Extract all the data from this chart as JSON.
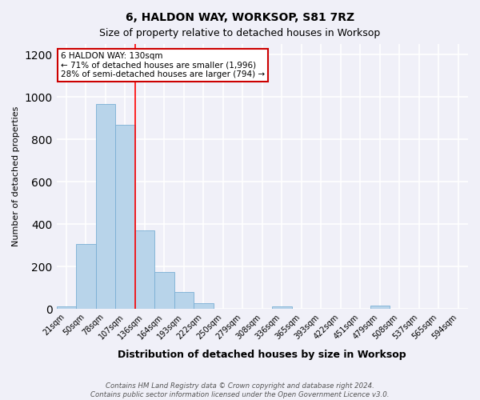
{
  "title1": "6, HALDON WAY, WORKSOP, S81 7RZ",
  "title2": "Size of property relative to detached houses in Worksop",
  "xlabel": "Distribution of detached houses by size in Worksop",
  "ylabel": "Number of detached properties",
  "categories": [
    "21sqm",
    "50sqm",
    "78sqm",
    "107sqm",
    "136sqm",
    "164sqm",
    "193sqm",
    "222sqm",
    "250sqm",
    "279sqm",
    "308sqm",
    "336sqm",
    "365sqm",
    "393sqm",
    "422sqm",
    "451sqm",
    "479sqm",
    "508sqm",
    "537sqm",
    "565sqm",
    "594sqm"
  ],
  "values": [
    10,
    305,
    968,
    868,
    370,
    175,
    80,
    25,
    0,
    0,
    0,
    10,
    0,
    0,
    0,
    0,
    15,
    0,
    0,
    0,
    0
  ],
  "bar_color": "#b8d4ea",
  "bar_edge_color": "#7aafd4",
  "red_line_index": 3.5,
  "annotation_text": "6 HALDON WAY: 130sqm\n← 71% of detached houses are smaller (1,996)\n28% of semi-detached houses are larger (794) →",
  "ylim": [
    0,
    1250
  ],
  "yticks": [
    0,
    200,
    400,
    600,
    800,
    1000,
    1200
  ],
  "footer1": "Contains HM Land Registry data © Crown copyright and database right 2024.",
  "footer2": "Contains public sector information licensed under the Open Government Licence v3.0.",
  "background_color": "#f0f0f8",
  "grid_color": "#ffffff",
  "annotation_box_color": "#ffffff",
  "annotation_box_edge_color": "#cc0000",
  "title1_fontsize": 10,
  "title2_fontsize": 9,
  "xlabel_fontsize": 9,
  "ylabel_fontsize": 8,
  "tick_fontsize": 7
}
